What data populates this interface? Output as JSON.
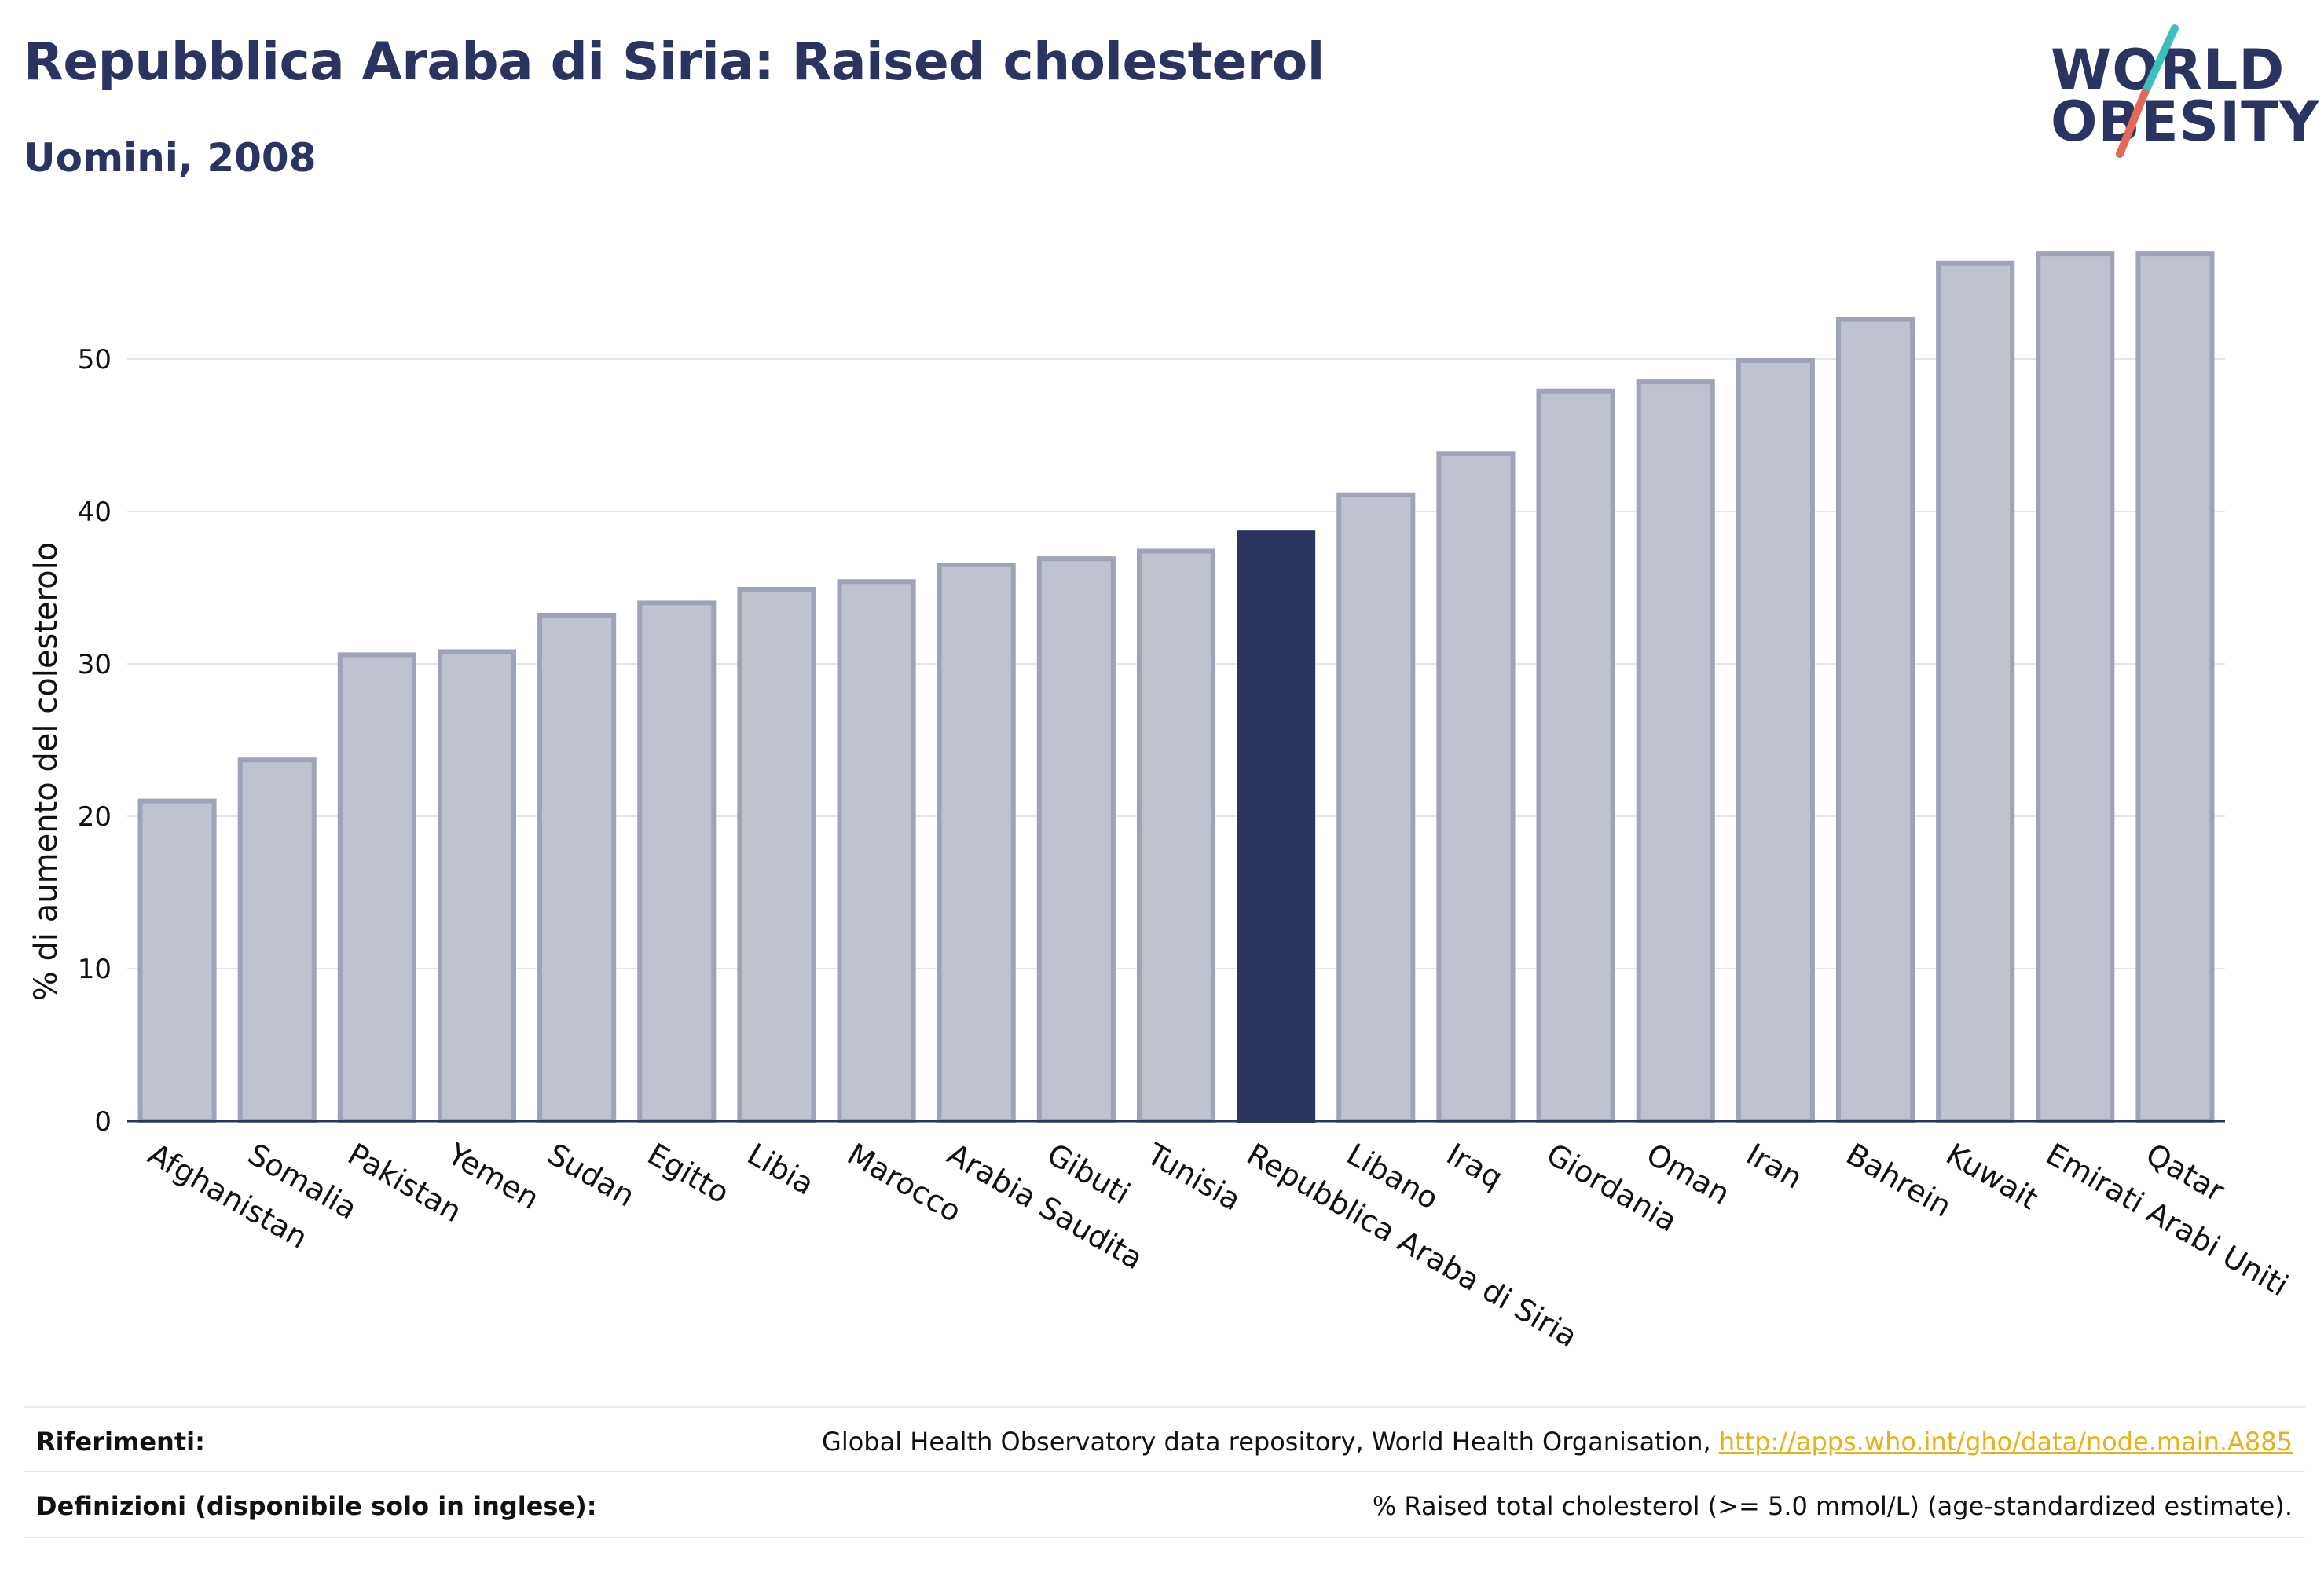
{
  "title": "Repubblica Araba di Siria: Raised cholesterol",
  "subtitle": "Uomini, 2008",
  "logo": {
    "line1": "WORLD",
    "line2": "OBESITY",
    "colors": {
      "text": "#2b3461",
      "slash_top": "#3bbfbf",
      "slash_bottom": "#e4685a"
    }
  },
  "footer": {
    "references_label": "Riferimenti:",
    "references_text": "Global Health Observatory data repository, World Health Organisation, ",
    "references_link": "http://apps.who.int/gho/data/node.main.A885",
    "definitions_label": "Definizioni (disponibile solo in inglese):",
    "definitions_text": "% Raised total cholesterol (>= 5.0 mmol/L) (age-standardized estimate)."
  },
  "colors": {
    "bar": "#bfc2cf",
    "bar_border": "#9ea3b8",
    "highlight": "#2b3461",
    "grid": "#e6e6e6",
    "axis_text": "#111111"
  },
  "chart_data": {
    "type": "bar",
    "ylabel": "% di aumento del colesterolo",
    "xlabel": "",
    "ylim": [
      0,
      60
    ],
    "yticks": [
      0,
      10,
      20,
      30,
      40,
      50
    ],
    "grid": true,
    "highlight": "Repubblica Araba di Siria",
    "categories": [
      "Afghanistan",
      "Somalia",
      "Pakistan",
      "Yemen",
      "Sudan",
      "Egitto",
      "Libia",
      "Marocco",
      "Arabia Saudita",
      "Gibuti",
      "Tunisia",
      "Repubblica Araba di Siria",
      "Libano",
      "Iraq",
      "Giordania",
      "Oman",
      "Iran",
      "Bahrein",
      "Kuwait",
      "Emirati Arabi Uniti",
      "Qatar"
    ],
    "values": [
      21.0,
      23.7,
      30.6,
      30.8,
      33.2,
      34.0,
      34.9,
      35.4,
      36.5,
      36.9,
      37.4,
      38.6,
      41.1,
      43.8,
      47.9,
      48.5,
      49.9,
      52.6,
      56.3,
      56.9,
      56.9
    ]
  }
}
